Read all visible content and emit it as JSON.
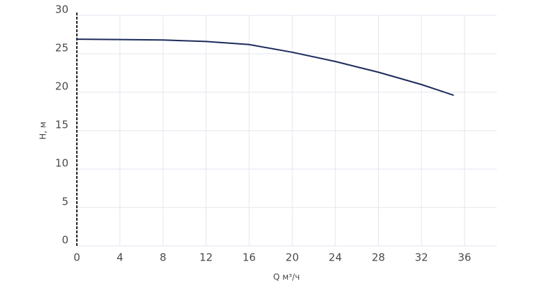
{
  "chart_data": {
    "type": "line",
    "x_label": "Q м³/ч",
    "y_label": "H, м",
    "x": [
      0,
      4,
      8,
      12,
      16,
      20,
      24,
      28,
      32,
      35
    ],
    "series": [
      {
        "color": "#1b2a5c",
        "values": [
          26.9,
          26.85,
          26.8,
          26.6,
          26.2,
          25.2,
          24.0,
          22.6,
          21.0,
          19.6
        ]
      }
    ],
    "xlim": [
      0,
      39
    ],
    "xticks": [
      0,
      4,
      8,
      12,
      16,
      20,
      24,
      28,
      32,
      36
    ],
    "ylim": [
      0,
      30
    ],
    "yticks": [
      0,
      5,
      10,
      15,
      20,
      25,
      30
    ],
    "grid": true
  }
}
